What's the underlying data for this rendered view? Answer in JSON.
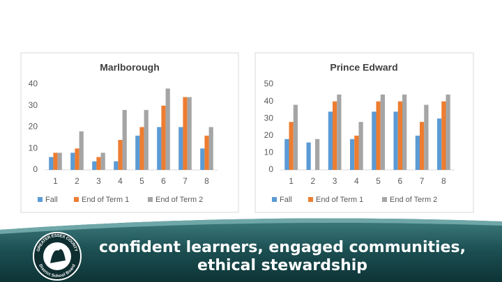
{
  "chart_data": [
    {
      "type": "bar",
      "title": "Marlborough",
      "categories": [
        "1",
        "2",
        "3",
        "4",
        "5",
        "6",
        "7",
        "8"
      ],
      "series": [
        {
          "name": "Fall",
          "color": "#5b9bd5",
          "values": [
            6,
            8,
            4,
            4,
            16,
            20,
            20,
            10
          ]
        },
        {
          "name": "End of Term 1",
          "color": "#ed7d31",
          "values": [
            8,
            10,
            6,
            14,
            20,
            30,
            34,
            16
          ]
        },
        {
          "name": "End of Term 2",
          "color": "#a5a5a5",
          "values": [
            8,
            18,
            8,
            28,
            28,
            38,
            34,
            20
          ]
        }
      ],
      "ylim": [
        0,
        40
      ],
      "yticks": [
        0,
        10,
        20,
        30,
        40
      ],
      "grid": false,
      "legend": "bottom"
    },
    {
      "type": "bar",
      "title": "Prince Edward",
      "categories": [
        "1",
        "2",
        "3",
        "4",
        "5",
        "6",
        "7",
        "8"
      ],
      "series": [
        {
          "name": "Fall",
          "color": "#5b9bd5",
          "values": [
            18,
            16,
            34,
            18,
            34,
            34,
            20,
            30
          ]
        },
        {
          "name": "End of Term 1",
          "color": "#ed7d31",
          "values": [
            28,
            null,
            40,
            20,
            40,
            40,
            28,
            40
          ]
        },
        {
          "name": "End of Term 2",
          "color": "#a5a5a5",
          "values": [
            38,
            18,
            44,
            28,
            44,
            44,
            38,
            44
          ]
        }
      ],
      "ylim": [
        0,
        50
      ],
      "yticks": [
        0,
        10,
        20,
        30,
        40,
        50
      ],
      "grid": false,
      "legend": "bottom"
    }
  ],
  "banner": {
    "line1": "confident learners, engaged communities,",
    "line2": "ethical stewardship",
    "logo_top": "GREATER ESSEX COUNTY",
    "logo_bottom": "District School Board"
  }
}
